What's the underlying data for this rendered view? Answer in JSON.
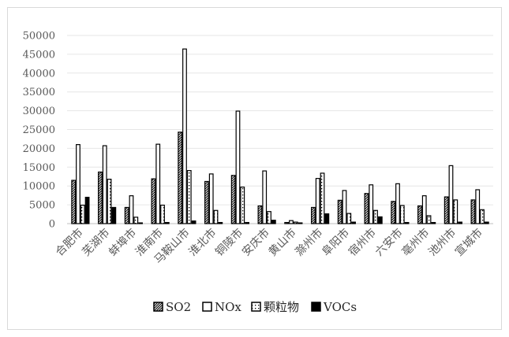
{
  "chart_data": {
    "type": "bar",
    "title": "",
    "xlabel": "",
    "ylabel": "",
    "ylim": [
      0,
      50000
    ],
    "yticks": [
      0,
      5000,
      10000,
      15000,
      20000,
      25000,
      30000,
      35000,
      40000,
      45000,
      50000
    ],
    "grid": true,
    "legend_position": "bottom",
    "categories": [
      "合肥市",
      "芜湖市",
      "蚌埠市",
      "淮南市",
      "马鞍山市",
      "淮北市",
      "铜陵市",
      "安庆市",
      "黄山市",
      "滁州市",
      "阜阳市",
      "宿州市",
      "六安市",
      "亳州市",
      "池州市",
      "宣城市"
    ],
    "series": [
      {
        "name": "SO2",
        "pattern": "slash",
        "values": [
          11500,
          13700,
          4300,
          11900,
          24300,
          11200,
          12800,
          4700,
          300,
          4300,
          6200,
          8000,
          5900,
          4700,
          7100,
          6300
        ]
      },
      {
        "name": "NOx",
        "pattern": "hollow",
        "values": [
          21000,
          20700,
          7400,
          21100,
          46400,
          13200,
          29900,
          14000,
          800,
          12000,
          8800,
          10300,
          10600,
          7400,
          15400,
          9000
        ]
      },
      {
        "name": "颗粒物",
        "pattern": "dotted",
        "values": [
          4900,
          11800,
          1700,
          4900,
          14100,
          3500,
          9700,
          3200,
          400,
          13400,
          2700,
          3500,
          4800,
          2100,
          6300,
          3700
        ]
      },
      {
        "name": "VOCs",
        "pattern": "solid",
        "values": [
          7000,
          4300,
          200,
          300,
          700,
          300,
          300,
          900,
          200,
          2600,
          400,
          1800,
          300,
          300,
          400,
          400
        ]
      }
    ]
  }
}
